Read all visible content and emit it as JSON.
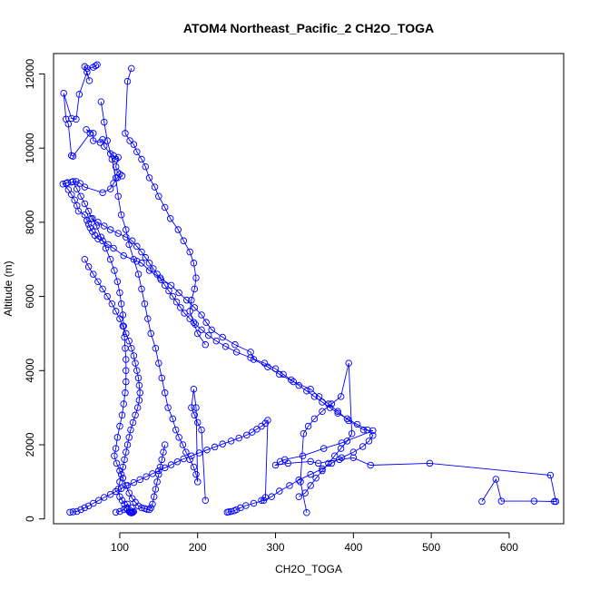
{
  "chart_data": {
    "type": "line",
    "title": "ATOM4 Northeast_Pacific_2 CH2O_TOGA",
    "xlabel": "CH2O_TOGA",
    "ylabel": "Altitude (m)",
    "xlim": [
      15,
      670
    ],
    "ylim": [
      -130,
      12550
    ],
    "xticks": [
      100,
      200,
      300,
      400,
      500,
      600
    ],
    "yticks": [
      0,
      2000,
      4000,
      6000,
      8000,
      10000,
      12000
    ],
    "grid": false,
    "legend": "none",
    "marker": "open-circle",
    "color": "#0000ff",
    "series": [
      {
        "name": "",
        "x": [
          71,
          69,
          66,
          58,
          55,
          61,
          58,
          48,
          44,
          38,
          28,
          31,
          34,
          38,
          40,
          62,
          57,
          66,
          66,
          75,
          78,
          80,
          88,
          92,
          95,
          98,
          95,
          97,
          103,
          100,
          97,
          92,
          88,
          78,
          55,
          49,
          44,
          38,
          33,
          31,
          27,
          34,
          38,
          42,
          45,
          47,
          55,
          58,
          60,
          62,
          65,
          68,
          72,
          78,
          85,
          92,
          105,
          122,
          128,
          138,
          152,
          166,
          176,
          186,
          196,
          205,
          211,
          218,
          232,
          248,
          268,
          272,
          290,
          305,
          323,
          345,
          356,
          368,
          380,
          394,
          413,
          425,
          385,
          362,
          335,
          312,
          306,
          300,
          316,
          345,
          355,
          382,
          400,
          422,
          498,
          653,
          660,
          658,
          632,
          590,
          583,
          565
        ],
        "y": [
          12250,
          12220,
          12180,
          12150,
          12200,
          11820,
          12050,
          11450,
          10780,
          10800,
          11480,
          10780,
          10650,
          9800,
          9780,
          10400,
          10500,
          10400,
          10200,
          10150,
          10230,
          10050,
          9850,
          9800,
          9700,
          9750,
          9500,
          9350,
          9250,
          9300,
          9200,
          9050,
          8900,
          8800,
          8950,
          9050,
          9100,
          9080,
          9070,
          9050,
          9030,
          8880,
          8750,
          8600,
          8450,
          8300,
          8200,
          8050,
          7950,
          7850,
          7750,
          7650,
          7550,
          7500,
          7400,
          7300,
          7100,
          6950,
          6900,
          6700,
          6500,
          6300,
          6100,
          5900,
          5700,
          5500,
          5300,
          5100,
          4900,
          4700,
          4500,
          4300,
          4100,
          3900,
          3700,
          3500,
          3300,
          3100,
          2900,
          2650,
          2400,
          2380,
          2050,
          1900,
          1700,
          1600,
          1550,
          1450,
          1500,
          1550,
          1500,
          1600,
          1650,
          1450,
          1500,
          1180,
          470,
          470,
          480,
          480,
          1070,
          470
        ]
      },
      {
        "name": "",
        "x": [
          115,
          110,
          107,
          113,
          118,
          122,
          128,
          133,
          138,
          145,
          150,
          158,
          165,
          175,
          182,
          190,
          195,
          198,
          196,
          192,
          190,
          195,
          200,
          210
        ],
        "y": [
          12150,
          11800,
          10400,
          10200,
          10100,
          9900,
          9700,
          9500,
          9200,
          8950,
          8700,
          8400,
          8100,
          7800,
          7500,
          7200,
          6900,
          6500,
          6200,
          5900,
          5600,
          5300,
          5000,
          4700
        ]
      },
      {
        "name": "",
        "x": [
          76,
          80,
          84,
          90,
          95,
          98,
          102,
          108,
          112,
          118,
          124,
          128,
          132,
          136,
          140,
          146,
          150,
          154,
          158,
          162,
          168,
          172,
          176,
          181,
          185,
          190,
          195,
          198,
          200,
          198,
          195,
          192,
          196,
          200,
          205,
          210
        ],
        "y": [
          11250,
          10700,
          10200,
          9700,
          9200,
          8700,
          8200,
          7800,
          7400,
          7000,
          6600,
          6200,
          5800,
          5400,
          5000,
          4600,
          4200,
          3800,
          3400,
          3000,
          2700,
          2400,
          2200,
          2000,
          1800,
          1600,
          1400,
          1200,
          1000,
          3000,
          3500,
          3000,
          2800,
          2600,
          2400,
          500
        ]
      },
      {
        "name": "",
        "x": [
          63,
          72,
          80,
          88,
          98,
          108,
          116,
          122,
          128,
          133,
          138,
          143,
          148,
          153,
          158,
          163,
          168,
          173,
          178,
          183,
          190,
          197,
          205,
          214,
          224,
          236,
          250,
          268,
          286,
          300,
          310,
          320,
          330,
          340,
          350,
          360,
          370,
          380,
          392,
          405,
          418,
          425,
          420,
          412,
          400,
          385,
          372,
          360,
          345,
          330,
          318,
          305,
          295,
          285,
          272,
          262,
          255,
          250,
          247,
          243,
          240,
          238
        ],
        "y": [
          8100,
          8000,
          7900,
          7800,
          7700,
          7600,
          7500,
          7350,
          7200,
          7050,
          6900,
          6750,
          6600,
          6450,
          6300,
          6150,
          6000,
          5850,
          5700,
          5550,
          5400,
          5250,
          5100,
          4950,
          4800,
          4650,
          4500,
          4350,
          4200,
          4050,
          3900,
          3750,
          3600,
          3450,
          3300,
          3150,
          3000,
          2850,
          2700,
          2550,
          2400,
          2250,
          2100,
          1950,
          1800,
          1650,
          1500,
          1350,
          1200,
          1050,
          900,
          750,
          600,
          500,
          420,
          360,
          300,
          250,
          220,
          200,
          190,
          180
        ]
      },
      {
        "name": "",
        "x": [
          55,
          60,
          66,
          72,
          78,
          84,
          90,
          95,
          100,
          104,
          108,
          112,
          115,
          118,
          120,
          122,
          124,
          125,
          126,
          125,
          123,
          120,
          117,
          114,
          112,
          110,
          108,
          106,
          104,
          102,
          100,
          98,
          100,
          103,
          106,
          108,
          110,
          112,
          113,
          114,
          115,
          116,
          117,
          118,
          115,
          110,
          105,
          100,
          95
        ],
        "y": [
          7000,
          6800,
          6600,
          6400,
          6200,
          6000,
          5800,
          5600,
          5400,
          5200,
          5000,
          4800,
          4600,
          4400,
          4200,
          4000,
          3800,
          3600,
          3400,
          3200,
          3000,
          2800,
          2600,
          2400,
          2200,
          2000,
          1800,
          1600,
          1400,
          1200,
          1000,
          800,
          600,
          500,
          400,
          300,
          250,
          200,
          180,
          170,
          160,
          170,
          180,
          200,
          300,
          400,
          250,
          200,
          180
        ]
      },
      {
        "name": "",
        "x": [
          40,
          45,
          50,
          55,
          60,
          65,
          70,
          76,
          82,
          88,
          93,
          97,
          100,
          102,
          104,
          105,
          106,
          107,
          108,
          108,
          108,
          107,
          105,
          103,
          100,
          97,
          95,
          93,
          96,
          100,
          104,
          108,
          112,
          116,
          120,
          124,
          128,
          132,
          135,
          138,
          140,
          142,
          144,
          146,
          148,
          150,
          152,
          154,
          156,
          158
        ],
        "y": [
          9100,
          8900,
          8700,
          8500,
          8300,
          8100,
          7900,
          7600,
          7300,
          7000,
          6700,
          6400,
          6100,
          5800,
          5500,
          5200,
          4900,
          4600,
          4300,
          4000,
          3700,
          3400,
          3100,
          2800,
          2500,
          2200,
          1900,
          1700,
          1500,
          1300,
          1100,
          900,
          700,
          550,
          450,
          350,
          300,
          280,
          260,
          250,
          300,
          400,
          600,
          800,
          1000,
          1200,
          1400,
          1600,
          1800,
          2000
        ]
      },
      {
        "name": "",
        "x": [
          36,
          40,
          45,
          50,
          55,
          60,
          66,
          73,
          80,
          88,
          95,
          102,
          110,
          118,
          126,
          134,
          142,
          150,
          158,
          166,
          174,
          182,
          192,
          202,
          212,
          222,
          232,
          243,
          253,
          263,
          270,
          276,
          282,
          287,
          290,
          287,
          282
        ],
        "y": [
          180,
          190,
          200,
          250,
          300,
          350,
          420,
          500,
          580,
          660,
          740,
          820,
          900,
          980,
          1060,
          1140,
          1220,
          1300,
          1380,
          1460,
          1540,
          1620,
          1700,
          1780,
          1860,
          1940,
          2020,
          2100,
          2180,
          2260,
          2340,
          2420,
          2500,
          2580,
          2660,
          580,
          500
        ]
      },
      {
        "name": "",
        "x": [
          330,
          338,
          345,
          352,
          360,
          368,
          376,
          384,
          392,
          398,
          394,
          384,
          372,
          360,
          350,
          342,
          336,
          332,
          340
        ],
        "y": [
          600,
          700,
          900,
          1100,
          1300,
          1500,
          1700,
          1900,
          2100,
          2300,
          4200,
          3300,
          3100,
          2900,
          2700,
          2500,
          2300,
          1000,
          170
        ]
      }
    ]
  }
}
